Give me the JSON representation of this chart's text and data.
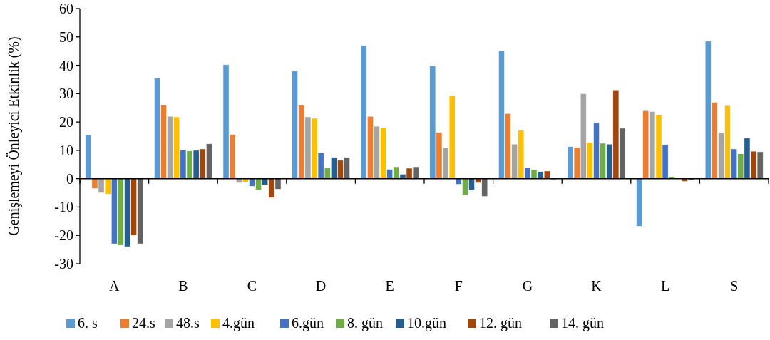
{
  "chart_data": {
    "type": "bar",
    "ylabel": "Genişlemeyi Önleyici Etkinlik (%)",
    "categories": [
      "A",
      "B",
      "C",
      "D",
      "E",
      "F",
      "G",
      "K",
      "L",
      "S"
    ],
    "ylim": [
      -30,
      60
    ],
    "yticks": [
      -30,
      -20,
      -10,
      0,
      10,
      20,
      30,
      40,
      50,
      60
    ],
    "legend": "bottom",
    "series": [
      {
        "name": "6. s",
        "color": "#5b9bd5",
        "values": [
          15.5,
          35.5,
          40.2,
          38,
          47,
          39.8,
          45,
          11.3,
          -16.8,
          48.5
        ]
      },
      {
        "name": "24.s",
        "color": "#ed7d31",
        "values": [
          -3.5,
          26,
          15.6,
          26,
          22,
          16.3,
          23,
          11,
          24,
          27
        ]
      },
      {
        "name": "48.s",
        "color": "#a5a5a5",
        "values": [
          -5,
          22,
          -1.5,
          21.8,
          18.5,
          10.8,
          12.2,
          30,
          23.7,
          16.2
        ]
      },
      {
        "name": "4.gün",
        "color": "#ffc000",
        "values": [
          -5.5,
          21.8,
          -1.2,
          21.3,
          18,
          29.3,
          17.2,
          12.8,
          22.6,
          25.8
        ]
      },
      {
        "name": "6.gün",
        "color": "#4472c4",
        "values": [
          -23,
          10.2,
          -2.7,
          9.2,
          3.3,
          -2,
          3.8,
          19.8,
          12,
          10.5
        ]
      },
      {
        "name": "8. gün",
        "color": "#70ad47",
        "values": [
          -23.5,
          9.8,
          -4,
          3.8,
          4.2,
          -5.8,
          3.2,
          12.5,
          0.7,
          8.8
        ]
      },
      {
        "name": "10.gün",
        "color": "#255e91",
        "values": [
          -24,
          10,
          -2.2,
          7.5,
          1.6,
          -4,
          2.5,
          12.2,
          0,
          14.3
        ]
      },
      {
        "name": "12. gün",
        "color": "#9e480e",
        "values": [
          -20,
          10.5,
          -6.7,
          6.5,
          3.7,
          -1.5,
          2.7,
          31.3,
          -1,
          9.7
        ]
      },
      {
        "name": "14. gün",
        "color": "#636363",
        "values": [
          -23,
          12.3,
          -3.7,
          7.5,
          4.2,
          -6.3,
          -0.3,
          17.8,
          -0.5,
          9.5
        ]
      }
    ]
  }
}
